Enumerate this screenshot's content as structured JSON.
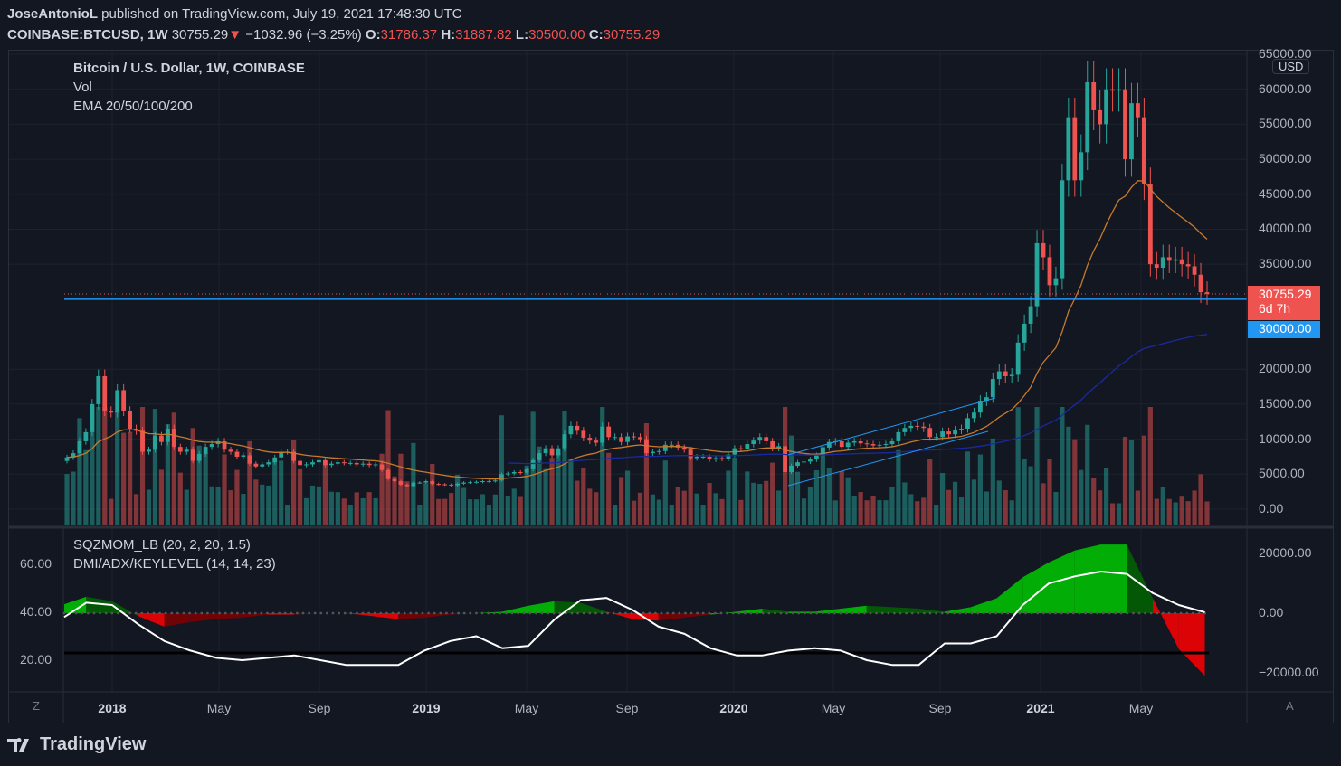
{
  "header": {
    "author": "JoseAntonioL",
    "published": "published on TradingView.com, July 19, 2021 17:48:30 UTC",
    "symbol": "COINBASE:BTCUSD, 1W",
    "last": "30755.29",
    "change": "−1032.96 (−3.25%)",
    "o_label": "O:",
    "o": "31786.37",
    "h_label": "H:",
    "h": "31887.82",
    "l_label": "L:",
    "l": "30500.00",
    "c_label": "C:",
    "c": "30755.29"
  },
  "legend": {
    "main": "Bitcoin / U.S. Dollar, 1W, COINBASE",
    "vol": "Vol",
    "ema": "EMA 20/50/100/200",
    "sqz": "SQZMOM_LB (20, 2, 20, 1.5)",
    "dmi": "DMI/ADX/KEYLEVEL (14, 14, 23)"
  },
  "price_axis": {
    "currency": "USD",
    "ticks": [
      "65000.00",
      "60000.00",
      "55000.00",
      "50000.00",
      "45000.00",
      "40000.00",
      "35000.00",
      "20000.00",
      "15000.00",
      "10000.00",
      "5000.00",
      "0.00"
    ],
    "last_label": "30755.29",
    "countdown": "6d 7h",
    "line_label": "30000.00"
  },
  "lower_axis": {
    "left_ticks": [
      "60.00",
      "40.00",
      "20.00"
    ],
    "right_ticks": [
      "20000.00",
      "0.00",
      "−20000.00"
    ]
  },
  "time_axis": {
    "ticks": [
      {
        "label": "2018",
        "year": true
      },
      {
        "label": "May",
        "year": false
      },
      {
        "label": "Sep",
        "year": false
      },
      {
        "label": "2019",
        "year": true
      },
      {
        "label": "May",
        "year": false
      },
      {
        "label": "Sep",
        "year": false
      },
      {
        "label": "2020",
        "year": true
      },
      {
        "label": "May",
        "year": false
      },
      {
        "label": "Sep",
        "year": false
      },
      {
        "label": "2021",
        "year": true
      },
      {
        "label": "May",
        "year": false
      }
    ],
    "left_corner": "Z",
    "right_corner": "A"
  },
  "footer": {
    "brand": "TradingView"
  },
  "colors": {
    "up": "#26a69a",
    "down": "#ef5350",
    "ema20": "#c77a2c",
    "ema100": "#1a2a9e",
    "hline": "#2196f3",
    "adx": "#ffffff",
    "keylevel": "#000000",
    "mom_up": "#00c800",
    "mom_up_weak": "#006400",
    "mom_dn": "#ff0000",
    "mom_dn_weak": "#800000"
  },
  "chart_data": [
    {
      "type": "candlestick",
      "title": "Bitcoin / U.S. Dollar, 1W, COINBASE",
      "interval": "1W",
      "first_week": "2017-11-06",
      "ylim": [
        0,
        65000
      ],
      "horizontal_line": 30000,
      "last_price": 30755.29,
      "closes": [
        7400,
        8000,
        9700,
        11000,
        15000,
        19000,
        14000,
        13800,
        17000,
        14000,
        11500,
        11200,
        8200,
        8500,
        10500,
        9600,
        11500,
        8900,
        8200,
        8500,
        6900,
        7900,
        8900,
        9300,
        9700,
        8500,
        8200,
        7500,
        7700,
        6500,
        6100,
        6400,
        6700,
        7400,
        8200,
        8200,
        6900,
        6300,
        6400,
        6700,
        7000,
        6300,
        6500,
        6700,
        6600,
        6600,
        6400,
        6500,
        6300,
        6400,
        5600,
        4300,
        4000,
        3500,
        3300,
        3800,
        3800,
        4000,
        3600,
        3550,
        3500,
        3400,
        3650,
        3800,
        3850,
        3900,
        4000,
        4000,
        4100,
        5000,
        5100,
        5300,
        5200,
        5700,
        7000,
        8000,
        8700,
        7700,
        8700,
        10700,
        11900,
        11200,
        10200,
        9800,
        9500,
        11800,
        10300,
        10300,
        9600,
        10400,
        10300,
        10000,
        8000,
        8200,
        8300,
        9200,
        9200,
        8800,
        8500,
        7300,
        7500,
        7500,
        7100,
        7300,
        7200,
        7800,
        8700,
        8600,
        9300,
        9800,
        10300,
        9700,
        8700,
        9000,
        5300,
        6200,
        6700,
        6800,
        7100,
        7700,
        8800,
        9600,
        9700,
        8900,
        9500,
        9700,
        9400,
        9300,
        9100,
        9200,
        9300,
        9700,
        11000,
        11600,
        11900,
        11800,
        11600,
        10300,
        10300,
        11100,
        10700,
        11300,
        11500,
        13000,
        13800,
        15500,
        16000,
        18600,
        19700,
        19000,
        19200,
        23800,
        26500,
        29000,
        38000,
        36000,
        32000,
        33000,
        47000,
        56000,
        47000,
        51000,
        61000,
        57000,
        55000,
        60000,
        59800,
        60000,
        50000,
        58000,
        56000,
        46500,
        35000,
        34500,
        36000,
        35500,
        35700,
        35000,
        34700,
        33500,
        31000,
        30755.29
      ],
      "indicators": [
        "Vol",
        "EMA 20",
        "EMA 100"
      ]
    },
    {
      "type": "area",
      "title": "SQZMOM_LB (20, 2, 20, 1.5)",
      "sampling": "monthly",
      "first_month": "2017-11",
      "ylim": [
        -22000,
        25000
      ],
      "values": [
        3000,
        5500,
        4000,
        -1000,
        -4500,
        -3000,
        -2000,
        -1500,
        -500,
        -500,
        0,
        0,
        -1000,
        -2000,
        -1500,
        -500,
        0,
        500,
        2500,
        4000,
        3500,
        500,
        -2000,
        -2500,
        -1500,
        -500,
        500,
        1500,
        500,
        500,
        1500,
        2500,
        2000,
        1500,
        500,
        2000,
        5000,
        12000,
        17000,
        21000,
        23000,
        23000,
        5000,
        -12000,
        -21000
      ]
    },
    {
      "type": "line",
      "title": "DMI/ADX/KEYLEVEL (14, 14, 23)",
      "sampling": "monthly",
      "first_month": "2017-11",
      "key_level": 23,
      "values": [
        38,
        44,
        43,
        35,
        28,
        24,
        21,
        20,
        21,
        22,
        20,
        18,
        18,
        18,
        24,
        28,
        30,
        25,
        26,
        37,
        45,
        46,
        41,
        34,
        31,
        25,
        22,
        22,
        24,
        25,
        24,
        20,
        18,
        18,
        27,
        27,
        30,
        43,
        52,
        55,
        57,
        56,
        48,
        43,
        40
      ]
    }
  ]
}
